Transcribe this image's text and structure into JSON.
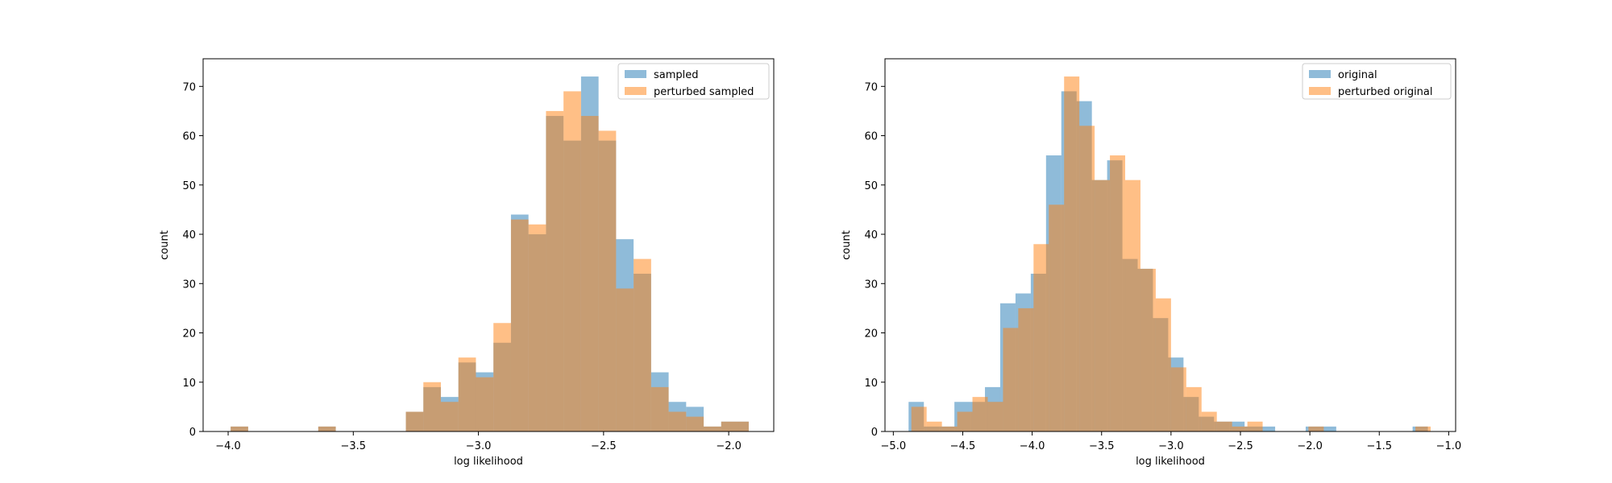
{
  "colors": {
    "series_a": "#1f77b4",
    "series_b": "#ff7f0e",
    "axis": "#000000",
    "legend_border": "#cccccc"
  },
  "chart_data": [
    {
      "type": "bar",
      "histogram": true,
      "xlabel": "log likelihood",
      "ylabel": "count",
      "xlim": [
        -4.1,
        -1.82
      ],
      "ylim": [
        0,
        75.6
      ],
      "xticks": [
        -4.0,
        -3.5,
        -3.0,
        -2.5,
        -2.0
      ],
      "xtick_labels": [
        "−4.0",
        "−3.5",
        "−3.0",
        "−2.5",
        "−2.0"
      ],
      "yticks": [
        0,
        10,
        20,
        30,
        40,
        50,
        60,
        70
      ],
      "ytick_labels": [
        "0",
        "10",
        "20",
        "30",
        "40",
        "50",
        "60",
        "70"
      ],
      "legend_position": "top-right",
      "series": [
        {
          "name": "sampled",
          "color": "#1f77b4",
          "bin_edges": [
            -3.99,
            -3.92,
            -3.85,
            -3.78,
            -3.71,
            -3.64,
            -3.57,
            -3.5,
            -3.43,
            -3.36,
            -3.29,
            -3.22,
            -3.15,
            -3.08,
            -3.01,
            -2.94,
            -2.87,
            -2.8,
            -2.73,
            -2.66,
            -2.59,
            -2.52,
            -2.45,
            -2.38,
            -2.31,
            -2.24,
            -2.17,
            -2.1,
            -2.03,
            -1.96,
            -1.92
          ],
          "counts": [
            1,
            0,
            0,
            0,
            0,
            1,
            0,
            0,
            0,
            0,
            4,
            9,
            7,
            14,
            12,
            18,
            44,
            40,
            64,
            59,
            72,
            59,
            39,
            32,
            12,
            6,
            5,
            1,
            2,
            2
          ]
        },
        {
          "name": "perturbed sampled",
          "color": "#ff7f0e",
          "bin_edges": [
            -3.99,
            -3.92,
            -3.85,
            -3.78,
            -3.71,
            -3.64,
            -3.57,
            -3.5,
            -3.43,
            -3.36,
            -3.29,
            -3.22,
            -3.15,
            -3.08,
            -3.01,
            -2.94,
            -2.87,
            -2.8,
            -2.73,
            -2.66,
            -2.59,
            -2.52,
            -2.45,
            -2.38,
            -2.31,
            -2.24,
            -2.17,
            -2.1,
            -2.03,
            -1.96,
            -1.92
          ],
          "counts": [
            1,
            0,
            0,
            0,
            0,
            1,
            0,
            0,
            0,
            0,
            4,
            10,
            6,
            15,
            11,
            22,
            43,
            42,
            65,
            69,
            64,
            61,
            29,
            35,
            9,
            4,
            3,
            1,
            2,
            2
          ]
        }
      ]
    },
    {
      "type": "bar",
      "histogram": true,
      "xlabel": "log likelihood",
      "ylabel": "count",
      "xlim": [
        -5.06,
        -0.95
      ],
      "ylim": [
        0,
        75.6
      ],
      "xticks": [
        -5.0,
        -4.5,
        -4.0,
        -3.5,
        -3.0,
        -2.5,
        -2.0,
        -1.5,
        -1.0
      ],
      "xtick_labels": [
        "−5.0",
        "−4.5",
        "−4.0",
        "−3.5",
        "−3.0",
        "−2.5",
        "−2.0",
        "−1.5",
        "−1.0"
      ],
      "yticks": [
        0,
        10,
        20,
        30,
        40,
        50,
        60,
        70
      ],
      "ytick_labels": [
        "0",
        "10",
        "20",
        "30",
        "40",
        "50",
        "60",
        "70"
      ],
      "legend_position": "top-right",
      "series": [
        {
          "name": "original",
          "color": "#1f77b4",
          "bin_edges": [
            -4.89,
            -4.78,
            -4.67,
            -4.56,
            -4.45,
            -4.34,
            -4.23,
            -4.12,
            -4.01,
            -3.9,
            -3.79,
            -3.68,
            -3.57,
            -3.46,
            -3.35,
            -3.24,
            -3.13,
            -3.02,
            -2.91,
            -2.8,
            -2.69,
            -2.58,
            -2.47,
            -2.36,
            -2.25,
            -2.14,
            -2.03,
            -1.92,
            -1.81,
            -1.7,
            -1.59,
            -1.48,
            -1.37,
            -1.26,
            -1.15
          ],
          "counts": [
            6,
            1,
            1,
            6,
            6,
            9,
            26,
            28,
            32,
            56,
            69,
            67,
            51,
            55,
            35,
            33,
            23,
            15,
            7,
            3,
            2,
            2,
            1,
            1,
            0,
            0,
            1,
            1,
            0,
            0,
            0,
            0,
            0,
            1
          ]
        },
        {
          "name": "perturbed original",
          "color": "#ff7f0e",
          "bin_edges": [
            -4.87,
            -4.76,
            -4.65,
            -4.54,
            -4.43,
            -4.32,
            -4.21,
            -4.1,
            -3.99,
            -3.88,
            -3.77,
            -3.66,
            -3.55,
            -3.44,
            -3.33,
            -3.22,
            -3.11,
            -3.0,
            -2.89,
            -2.78,
            -2.67,
            -2.56,
            -2.45,
            -2.34,
            -2.23,
            -2.12,
            -2.01,
            -1.9,
            -1.79,
            -1.68,
            -1.57,
            -1.46,
            -1.35,
            -1.24,
            -1.13
          ],
          "counts": [
            5,
            2,
            1,
            4,
            7,
            6,
            21,
            25,
            38,
            46,
            72,
            62,
            51,
            56,
            51,
            33,
            27,
            13,
            9,
            4,
            2,
            1,
            2,
            0,
            0,
            0,
            1,
            0,
            0,
            0,
            0,
            0,
            0,
            1
          ]
        }
      ]
    }
  ]
}
